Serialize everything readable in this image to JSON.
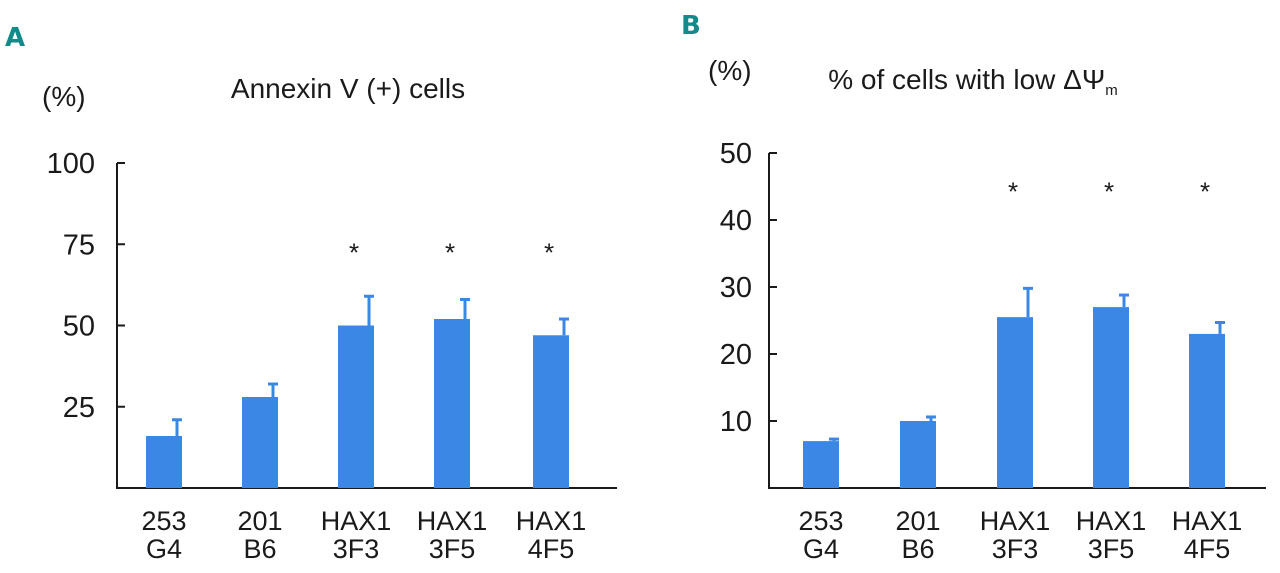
{
  "colors": {
    "bar": "#3b87e6",
    "axis": "#1a1a1a",
    "panel_letter": "#138a8a",
    "text": "#1a1a1a"
  },
  "chart_data": [
    {
      "panel": "A",
      "type": "bar",
      "unit_label": "(%)",
      "title": "Annexin V (+) cells",
      "title_sub": "",
      "ylim": [
        0,
        100
      ],
      "yticks": [
        "25",
        "50",
        "75",
        "100"
      ],
      "ytick_values": [
        25,
        50,
        75,
        100
      ],
      "categories": [
        [
          "253",
          "G4"
        ],
        [
          "201",
          "B6"
        ],
        [
          "HAX1",
          "3F3"
        ],
        [
          "HAX1",
          "3F5"
        ],
        [
          "HAX1",
          "4F5"
        ]
      ],
      "values": [
        16,
        28,
        50,
        52,
        47
      ],
      "errors": [
        5,
        4,
        9,
        6,
        5
      ],
      "significance": [
        "",
        "",
        "*",
        "*",
        "*"
      ],
      "star_value": 74
    },
    {
      "panel": "B",
      "type": "bar",
      "unit_label": "(%)",
      "title": "% of cells with low ΔΨ",
      "title_sub": "m",
      "ylim": [
        0,
        50
      ],
      "yticks": [
        "10",
        "20",
        "30",
        "40",
        "50"
      ],
      "ytick_values": [
        10,
        20,
        30,
        40,
        50
      ],
      "categories": [
        [
          "253",
          "G4"
        ],
        [
          "201",
          "B6"
        ],
        [
          "HAX1",
          "3F3"
        ],
        [
          "HAX1",
          "3F5"
        ],
        [
          "HAX1",
          "4F5"
        ]
      ],
      "values": [
        7,
        10,
        25.5,
        27,
        23
      ],
      "errors": [
        0.3,
        0.6,
        4.3,
        1.8,
        1.7
      ],
      "significance": [
        "",
        "",
        "*",
        "*",
        "*"
      ],
      "star_value": 45
    }
  ]
}
